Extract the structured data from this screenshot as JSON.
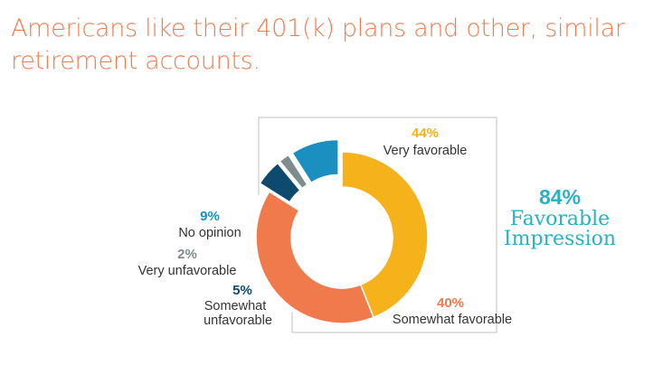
{
  "title": "Americans like their 401(k) plans and other, similar retirement accounts.",
  "chart_data": {
    "type": "pie",
    "donut": true,
    "slices": [
      {
        "label": "Very favorable",
        "value": 44,
        "pct_label": "44%",
        "color": "#f5b21b"
      },
      {
        "label": "Somewhat favorable",
        "value": 40,
        "pct_label": "40%",
        "color": "#f07a4c"
      },
      {
        "label": "Somewhat unfavorable",
        "value": 5,
        "pct_label": "5%",
        "color": "#0e4a6e"
      },
      {
        "label": "Very unfavorable",
        "value": 2,
        "pct_label": "2%",
        "color": "#7f8c8d"
      },
      {
        "label": "No opinion",
        "value": 9,
        "pct_label": "9%",
        "color": "#1a8fc0"
      }
    ],
    "callout": {
      "pct": "84%",
      "line1": "Favorable",
      "line2": "Impression",
      "color": "#27b2c3"
    },
    "bracket_color": "#bfbfbf"
  }
}
